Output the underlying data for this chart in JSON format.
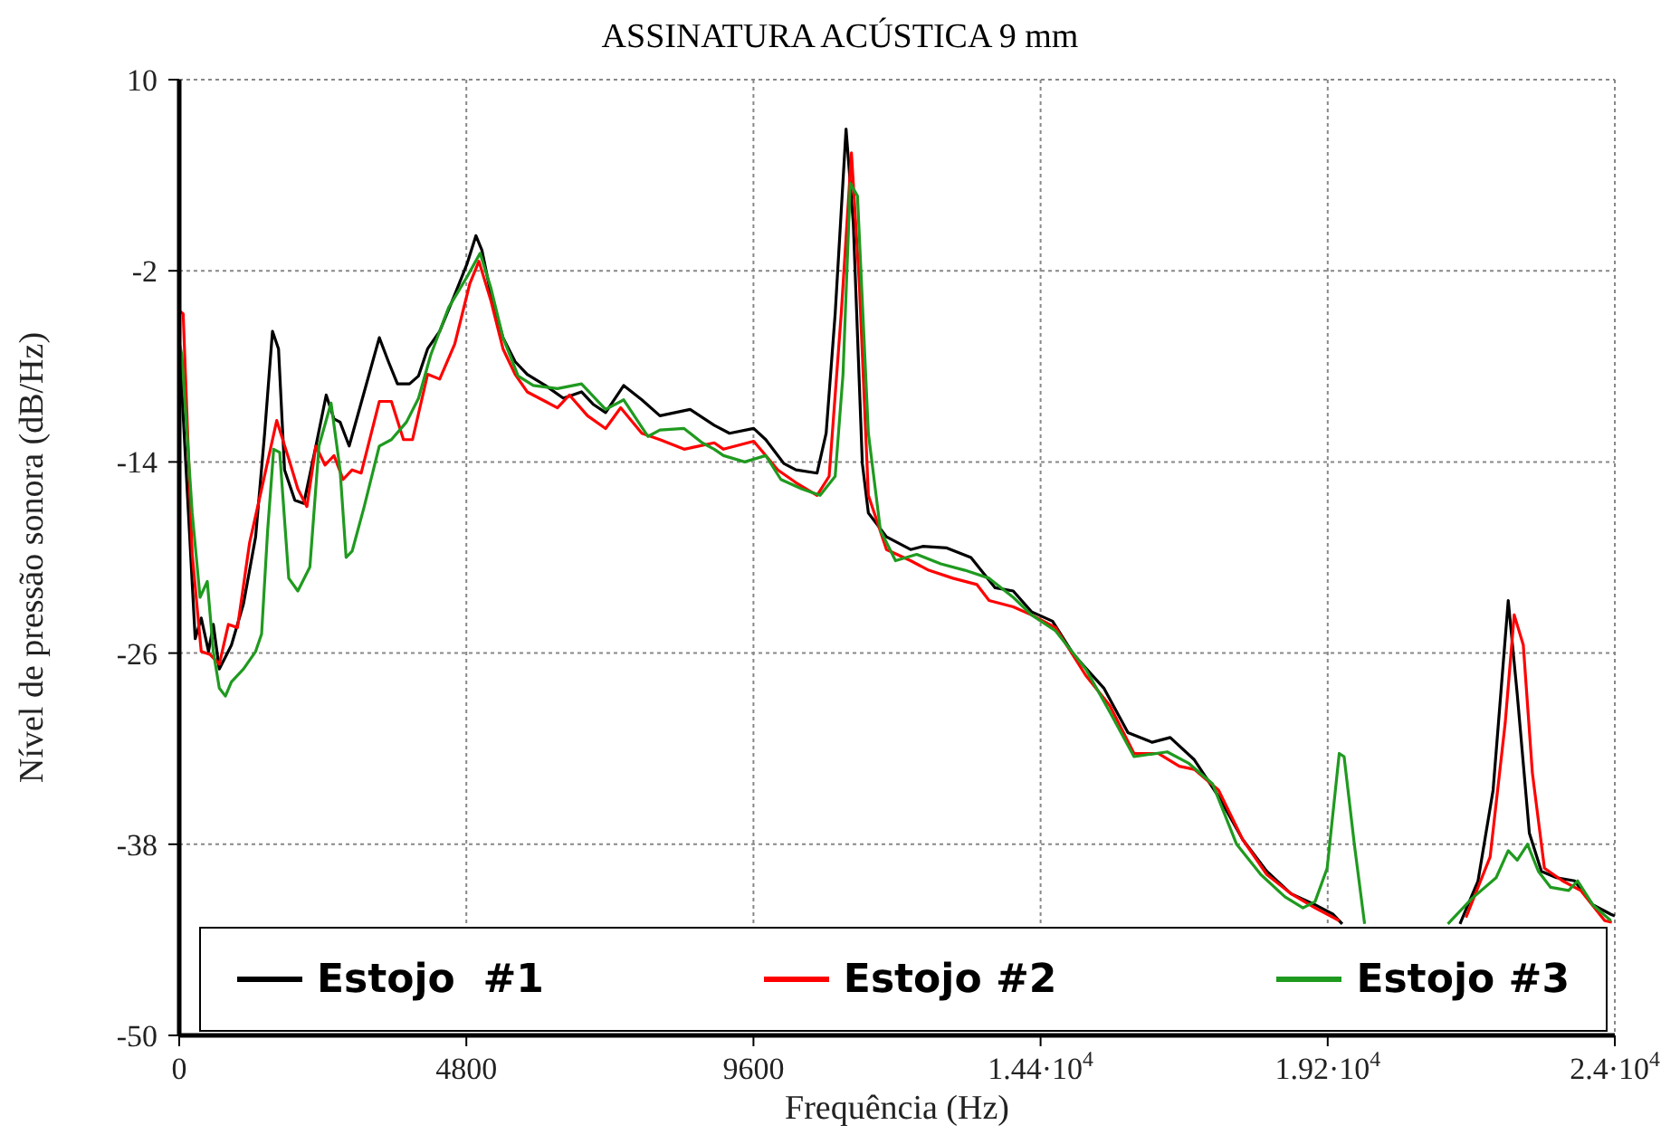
{
  "chart_data": {
    "type": "line",
    "title": "ASSINATURA ACÚSTICA 9 mm",
    "xlabel": "Frequência (Hz)",
    "ylabel": "Nível de pressão sonora (dB/Hz)",
    "xlim": [
      0,
      24000
    ],
    "ylim": [
      -50,
      10
    ],
    "xticks": [
      0,
      4800,
      9600,
      {
        "value": 14400,
        "label": "1.44·10$^{4}$"
      },
      {
        "value": 19200,
        "label": "1.92·10$^{4}$"
      },
      {
        "value": 24000,
        "label": "2.4·10$^{4}$"
      }
    ],
    "yticks": [
      -50,
      -38,
      -26,
      -14,
      -2,
      10
    ],
    "grid": true,
    "legend": "bottom",
    "marker": "none",
    "line_style": "solid",
    "series": [
      {
        "name": "Estojo  #1",
        "color": "#000000",
        "x": [
          0,
          45,
          267,
          368,
          490,
          570,
          670,
          873,
          1075,
          1277,
          1428,
          1559,
          1660,
          1761,
          1933,
          2083,
          2285,
          2457,
          2588,
          2689,
          2841,
          3093,
          3345,
          3497,
          3648,
          3850,
          4001,
          4152,
          4354,
          4606,
          4808,
          4960,
          5060,
          5212,
          5413,
          5615,
          5817,
          6120,
          6422,
          6725,
          6927,
          7128,
          7431,
          7734,
          8036,
          8541,
          8944,
          9200,
          9604,
          9806,
          10108,
          10310,
          10663,
          10815,
          10966,
          11148,
          11269,
          11420,
          11521,
          11824,
          12227,
          12429,
          12833,
          13236,
          13640,
          13943,
          14247,
          14600,
          14953,
          15458,
          15861,
          16265,
          16567,
          16971,
          17375,
          17778,
          18182,
          18585,
          18989,
          19292,
          19443,
          20400,
          21411,
          21713,
          21965,
          22218,
          22369,
          22571,
          22773,
          23025,
          23328,
          23631,
          23934,
          24000
        ],
        "values": [
          -6.5,
          -9.6,
          -25.1,
          -23.8,
          -25.9,
          -24.2,
          -27.0,
          -25.5,
          -22.9,
          -18.7,
          -12.2,
          -5.8,
          -6.9,
          -14.5,
          -16.4,
          -16.6,
          -13.0,
          -9.8,
          -11.3,
          -11.5,
          -13.0,
          -9.6,
          -6.2,
          -7.7,
          -9.1,
          -9.1,
          -8.6,
          -6.9,
          -5.8,
          -3.5,
          -1.6,
          0.2,
          -0.7,
          -3.5,
          -6.2,
          -7.7,
          -8.5,
          -9.2,
          -10.0,
          -9.6,
          -10.4,
          -10.9,
          -9.2,
          -10.1,
          -11.1,
          -10.7,
          -11.7,
          -12.2,
          -11.9,
          -12.6,
          -14.1,
          -14.5,
          -14.7,
          -12.2,
          -4.7,
          6.9,
          1.0,
          -14.1,
          -17.2,
          -18.7,
          -19.5,
          -19.3,
          -19.4,
          -20.0,
          -21.9,
          -22.1,
          -23.4,
          -24.0,
          -26.1,
          -28.2,
          -31.0,
          -31.6,
          -31.3,
          -32.7,
          -35.0,
          -37.7,
          -39.7,
          -41.1,
          -41.8,
          -42.4,
          -43.0,
          null,
          -43.0,
          -40.3,
          -34.6,
          -22.7,
          -28.6,
          -37.3,
          -39.7,
          -40.1,
          -40.3,
          -41.8,
          -42.4,
          -42.5
        ]
      },
      {
        "name": "Estojo #2",
        "color": "#ff0000",
        "x": [
          0,
          66,
          217,
          368,
          519,
          670,
          822,
          974,
          1175,
          1377,
          1630,
          1831,
          1983,
          2134,
          2285,
          2437,
          2588,
          2740,
          2891,
          3042,
          3345,
          3547,
          3749,
          3900,
          4152,
          4354,
          4606,
          4858,
          5010,
          5212,
          5413,
          5615,
          5817,
          6120,
          6322,
          6523,
          6826,
          7128,
          7380,
          7734,
          8036,
          8440,
          8944,
          9099,
          9604,
          10007,
          10310,
          10663,
          10865,
          11067,
          11238,
          11370,
          11521,
          11824,
          12227,
          12530,
          12934,
          13337,
          13539,
          13943,
          14247,
          14650,
          15155,
          15558,
          15962,
          16366,
          16719,
          16971,
          17375,
          17778,
          18182,
          18585,
          18989,
          19393,
          20400,
          21512,
          21915,
          22167,
          22318,
          22470,
          22621,
          22823,
          23126,
          23429,
          23832,
          23950
        ],
        "values": [
          -4.5,
          -4.7,
          -19.8,
          -25.9,
          -26.1,
          -26.7,
          -24.2,
          -24.4,
          -19.1,
          -15.7,
          -11.4,
          -13.8,
          -15.7,
          -16.8,
          -13.0,
          -14.2,
          -13.6,
          -15.1,
          -14.5,
          -14.7,
          -10.2,
          -10.2,
          -12.6,
          -12.6,
          -8.5,
          -8.8,
          -6.6,
          -2.8,
          -1.4,
          -3.9,
          -6.9,
          -8.5,
          -9.6,
          -10.2,
          -10.6,
          -9.8,
          -11.1,
          -11.9,
          -10.6,
          -12.2,
          -12.6,
          -13.2,
          -12.8,
          -13.2,
          -12.7,
          -14.5,
          -15.3,
          -16.1,
          -14.9,
          -4.7,
          5.4,
          -2.8,
          -16.1,
          -19.5,
          -20.2,
          -20.8,
          -21.3,
          -21.7,
          -22.7,
          -23.1,
          -23.6,
          -24.4,
          -27.4,
          -29.3,
          -32.3,
          -32.3,
          -33.1,
          -33.3,
          -34.6,
          -37.7,
          -39.9,
          -41.1,
          -42.0,
          -42.8,
          null,
          -42.6,
          -38.8,
          -30.4,
          -23.6,
          -25.5,
          -33.5,
          -39.5,
          -40.3,
          -40.9,
          -42.8,
          -42.9
        ]
      },
      {
        "name": "Estojo #3",
        "color": "#1f9a1f",
        "x": [
          0,
          45,
          217,
          348,
          469,
          570,
          670,
          772,
          873,
          1075,
          1277,
          1377,
          1478,
          1579,
          1680,
          1831,
          1983,
          2184,
          2336,
          2538,
          2689,
          2790,
          2891,
          3093,
          3345,
          3547,
          3799,
          4001,
          4203,
          4505,
          4808,
          5030,
          5212,
          5413,
          5665,
          5918,
          6322,
          6725,
          7128,
          7431,
          7835,
          8036,
          8440,
          8743,
          8944,
          9099,
          9453,
          9806,
          10058,
          10411,
          10714,
          10966,
          11097,
          11218,
          11339,
          11521,
          11723,
          11975,
          12328,
          12732,
          13135,
          13539,
          13943,
          14247,
          14650,
          15155,
          15558,
          15962,
          16517,
          16870,
          17274,
          17677,
          18081,
          18484,
          18787,
          18989,
          19191,
          19393,
          19474,
          19645,
          19817,
          20500,
          21209,
          21613,
          22016,
          22218,
          22369,
          22541,
          22722,
          22924,
          23227,
          23378,
          23631,
          23934
        ],
        "values": [
          -6.5,
          -7.3,
          -17.2,
          -22.5,
          -21.5,
          -25.9,
          -28.2,
          -28.7,
          -27.8,
          -27.0,
          -25.9,
          -24.8,
          -18.3,
          -13.2,
          -13.4,
          -21.3,
          -22.1,
          -20.6,
          -13.0,
          -10.3,
          -14.5,
          -20.0,
          -19.6,
          -16.8,
          -13.0,
          -12.6,
          -11.5,
          -10.0,
          -7.3,
          -4.3,
          -2.4,
          -0.9,
          -3.1,
          -6.2,
          -8.6,
          -9.2,
          -9.4,
          -9.1,
          -10.7,
          -10.1,
          -12.4,
          -12.0,
          -11.9,
          -12.8,
          -13.2,
          -13.6,
          -14.0,
          -13.6,
          -15.1,
          -15.7,
          -16.1,
          -14.9,
          -8.5,
          3.5,
          2.7,
          -12.2,
          -18.3,
          -20.2,
          -19.8,
          -20.4,
          -20.8,
          -21.3,
          -22.5,
          -23.6,
          -24.6,
          -27.0,
          -29.7,
          -32.5,
          -32.2,
          -32.9,
          -34.2,
          -38.0,
          -39.9,
          -41.3,
          -42.0,
          -41.6,
          -39.5,
          -32.3,
          -32.5,
          -38.0,
          -43.0,
          null,
          -43.0,
          -41.4,
          -40.1,
          -38.4,
          -39.0,
          -38.0,
          -39.7,
          -40.7,
          -40.9,
          -40.3,
          -41.8,
          -42.8
        ]
      }
    ]
  }
}
